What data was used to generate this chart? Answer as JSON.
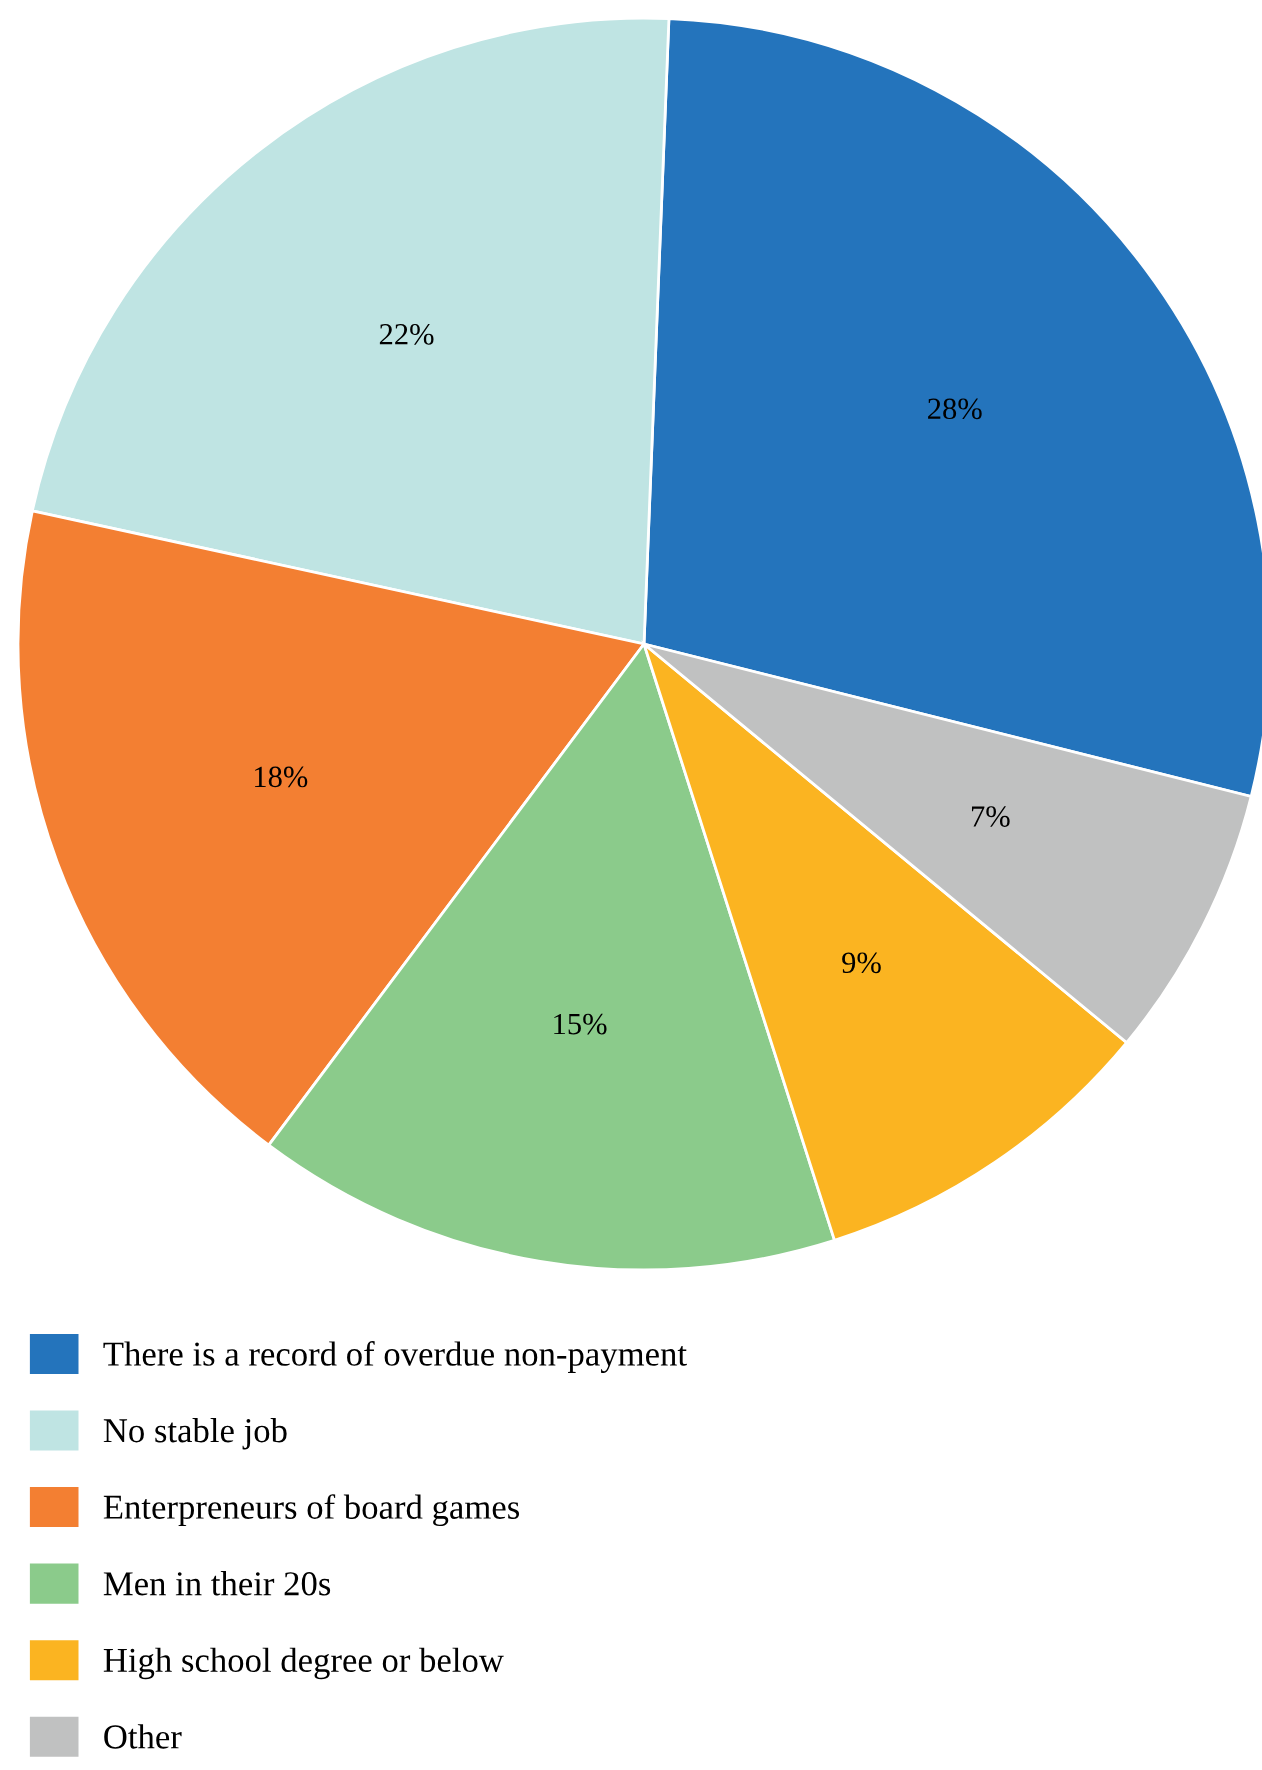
{
  "chart_data": {
    "type": "pie",
    "categories": [
      "There is a record of overdue non-payment",
      "No stable job",
      "Enterpreneurs of board games",
      "Men in their 20s",
      "High school degree or below",
      "Other"
    ],
    "values": [
      28,
      22,
      18,
      15,
      9,
      7
    ],
    "value_labels": [
      "28%",
      "22%",
      "18%",
      "15%",
      "9%",
      "7%"
    ],
    "colors": [
      "#2474bc",
      "#bfe4e3",
      "#f37f32",
      "#8bcb8b",
      "#fbb421",
      "#c0c1c1"
    ],
    "legend": "bottom"
  }
}
